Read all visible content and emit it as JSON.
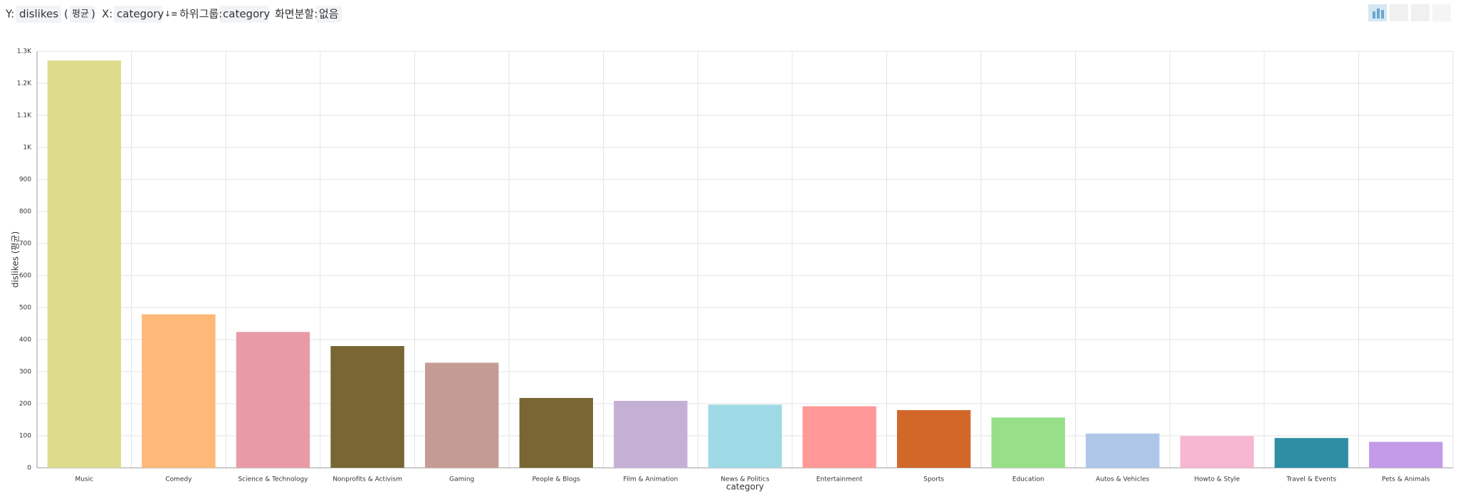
{
  "toolbar": {
    "y_label": "Y:",
    "y_field": "dislikes",
    "agg_open": "(",
    "agg": "평균",
    "agg_close": ")",
    "x_label": "X:",
    "x_field": "category",
    "subgroup_label": "하위그룹:",
    "subgroup_field": "category",
    "split_label": "화면분할:",
    "split_value": "없음"
  },
  "chart_data": {
    "type": "bar",
    "x_label": "category",
    "y_label": "dislikes (평균)",
    "categories": [
      "Music",
      "Comedy",
      "Science & Technology",
      "Nonprofits & Activism",
      "Gaming",
      "People & Blogs",
      "Film & Animation",
      "News & Politics",
      "Entertainment",
      "Sports",
      "Education",
      "Autos & Vehicles",
      "Howto & Style",
      "Travel & Events",
      "Pets & Animals"
    ],
    "values": [
      1271,
      479,
      424,
      380,
      328,
      218,
      209,
      197,
      192,
      180,
      157,
      107,
      99,
      93,
      81
    ],
    "colors": [
      "#dcdc8c",
      "#ffb878",
      "#e89ba7",
      "#786634",
      "#c49c94",
      "#786634",
      "#c5b0d5",
      "#9edae5",
      "#ff9896",
      "#d2672a",
      "#98df8a",
      "#aec7e8",
      "#f7b6d2",
      "#2e8ea4",
      "#c39be8"
    ],
    "ylim": [
      0,
      1300
    ],
    "yticks": [
      0,
      100,
      200,
      300,
      400,
      500,
      600,
      700,
      800,
      900,
      {
        "value": 1000,
        "label": "1K"
      },
      {
        "value": 1100,
        "label": "1.1K"
      },
      {
        "value": 1200,
        "label": "1.2K"
      },
      {
        "value": 1300,
        "label": "1.3K"
      }
    ],
    "grid": true
  }
}
